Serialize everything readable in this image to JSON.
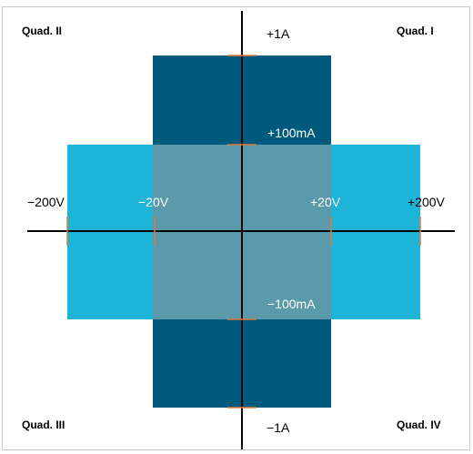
{
  "quadrants": {
    "q1": "Quad. I",
    "q2": "Quad. II",
    "q3": "Quad. III",
    "q4": "Quad. IV"
  },
  "current_labels": {
    "pos_1a": "+1A",
    "pos_100ma": "+100mA",
    "neg_100ma": "−100mA",
    "neg_1a": "−1A"
  },
  "voltage_labels": {
    "neg_200v": "−200V",
    "neg_20v": "−20V",
    "pos_20v": "+20V",
    "pos_200v": "+200V"
  },
  "colors": {
    "high_current_region": "#005a7d",
    "high_voltage_region": "#1db4d8",
    "overlap_region": "#5a9aab",
    "axis": "#000000",
    "tick": "#e07a3a",
    "label_on_dark": "#ffffff",
    "label_on_light": "#000000"
  }
}
